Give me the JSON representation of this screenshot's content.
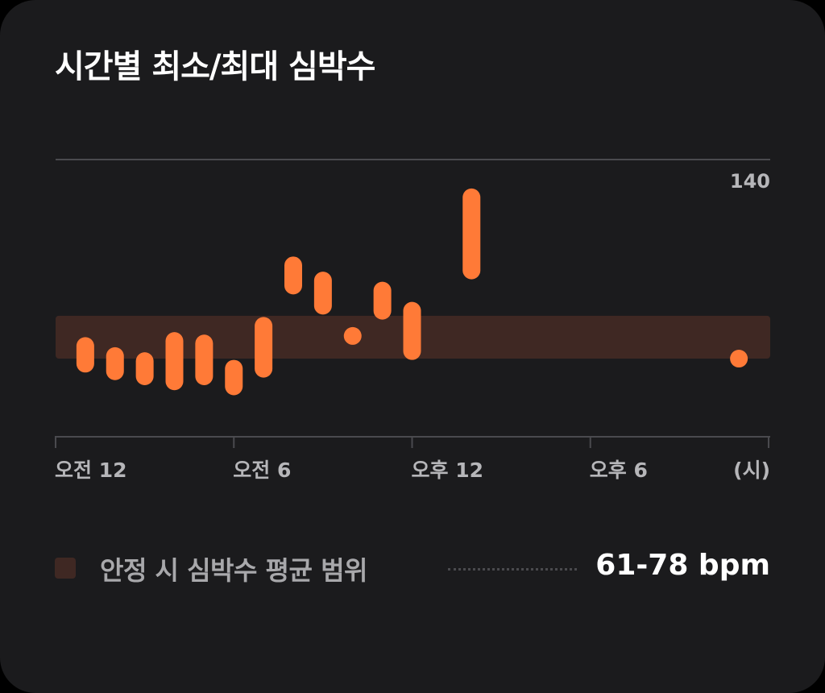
{
  "title": "시간별 최소/최대 심박수",
  "colors": {
    "bar": "#ff7a37",
    "band": "#3f2823",
    "grid": "#4a4a4e",
    "axis_text": "#b6b6b9",
    "card": "#1b1b1d"
  },
  "legend": {
    "label": "안정 시 심박수 평균 범위",
    "value": "61-78 bpm"
  },
  "chart_data": {
    "type": "range-bar",
    "title": "시간별 최소/최대 심박수",
    "x_tick_labels": [
      "오전 12",
      "오전 6",
      "오후 12",
      "오후 6"
    ],
    "x_unit_label": "(시)",
    "x_ticks_hours": [
      0,
      6,
      12,
      18,
      24
    ],
    "y_max_label": "140",
    "ylim": [
      30,
      140
    ],
    "resting_range": {
      "name": "안정 시 심박수 평균 범위",
      "min": 61,
      "max": 78
    },
    "series": [
      {
        "hour": 1,
        "min": 59,
        "max": 66
      },
      {
        "hour": 2,
        "min": 56,
        "max": 62
      },
      {
        "hour": 3,
        "min": 54,
        "max": 60
      },
      {
        "hour": 4,
        "min": 52,
        "max": 68
      },
      {
        "hour": 5,
        "min": 54,
        "max": 67
      },
      {
        "hour": 6,
        "min": 50,
        "max": 57
      },
      {
        "hour": 7,
        "min": 57,
        "max": 74
      },
      {
        "hour": 8,
        "min": 90,
        "max": 98
      },
      {
        "hour": 9,
        "min": 82,
        "max": 92
      },
      {
        "hour": 10,
        "min": 70,
        "max": 70
      },
      {
        "hour": 11,
        "min": 80,
        "max": 88
      },
      {
        "hour": 12,
        "min": 64,
        "max": 80
      },
      {
        "hour": 14,
        "min": 96,
        "max": 125
      },
      {
        "hour": 23,
        "min": 61,
        "max": 61
      }
    ]
  }
}
